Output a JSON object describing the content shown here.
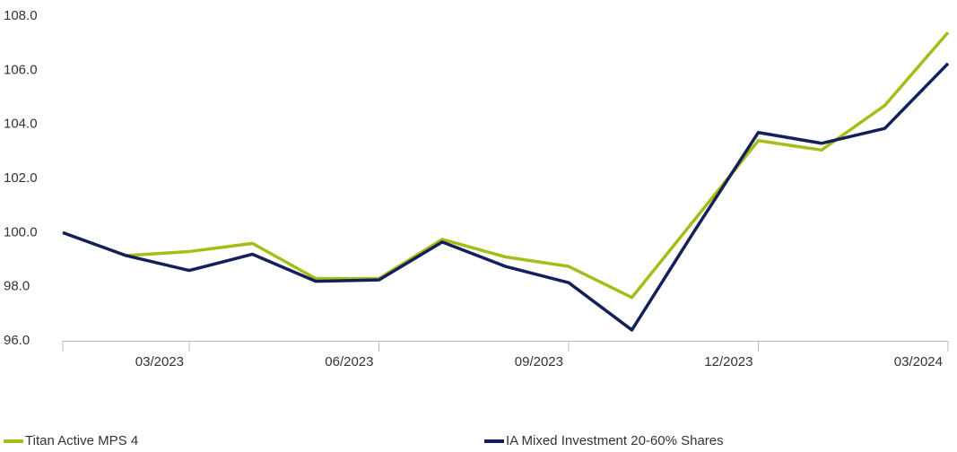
{
  "chart_data": {
    "type": "line",
    "categories": [
      null,
      null,
      "03/2023",
      null,
      null,
      "06/2023",
      null,
      null,
      "09/2023",
      null,
      null,
      "12/2023",
      null,
      null,
      "03/2024"
    ],
    "series": [
      {
        "name": "Titan Active MPS 4",
        "color": "#a4bd19",
        "values": [
          100.0,
          99.15,
          99.3,
          99.6,
          98.3,
          98.3,
          99.75,
          99.1,
          98.75,
          97.6,
          100.5,
          103.4,
          103.05,
          104.7,
          107.4
        ]
      },
      {
        "name": "IA Mixed Investment 20-60% Shares",
        "color": "#14205a",
        "values": [
          100.0,
          99.15,
          98.6,
          99.2,
          98.2,
          98.25,
          99.65,
          98.75,
          98.15,
          96.4,
          100.1,
          103.7,
          103.3,
          103.85,
          106.25
        ]
      }
    ],
    "ylim": [
      96,
      108
    ],
    "yticks": [
      {
        "value": 96,
        "label": "96.0"
      },
      {
        "value": 98,
        "label": "98.0"
      },
      {
        "value": 100,
        "label": "100.0"
      },
      {
        "value": 102,
        "label": "102.0"
      },
      {
        "value": 104,
        "label": "104.0"
      },
      {
        "value": 106,
        "label": "106.0"
      },
      {
        "value": 108,
        "label": "108.0"
      }
    ],
    "grid": false,
    "legend": "bottom"
  }
}
